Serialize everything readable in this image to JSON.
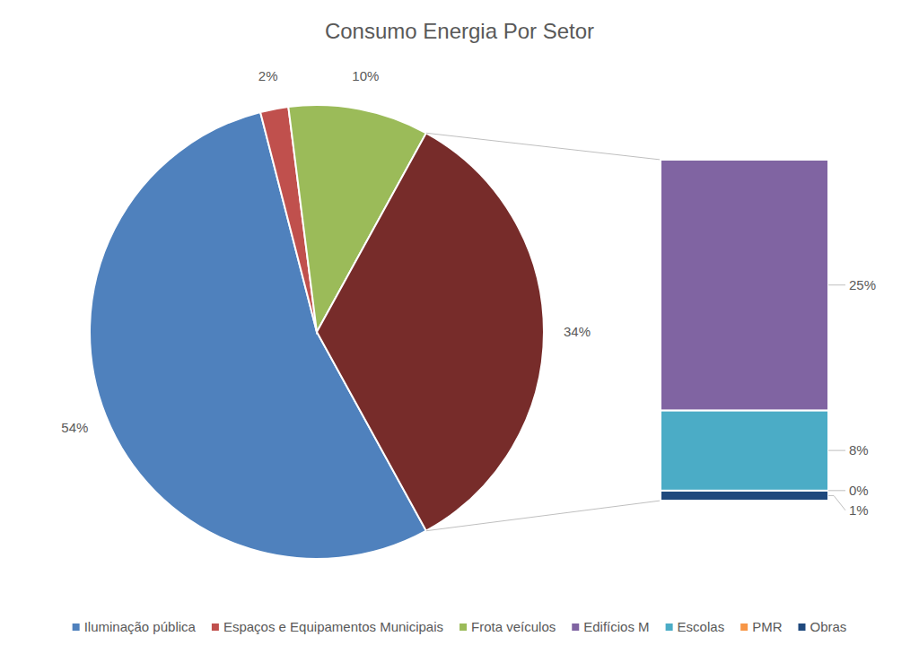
{
  "chart_data": {
    "type": "pie",
    "title": "Consumo Energia Por Setor",
    "categories": [
      "Iluminação pública",
      "Espaços e Equipamentos Municipais",
      "Frota veículos",
      null
    ],
    "values": [
      54,
      2,
      10,
      34
    ],
    "value_labels": [
      "54%",
      "2%",
      "10%",
      "34%"
    ],
    "colors": [
      "#4f81bd",
      "#c0504d",
      "#9bbb59",
      "#772c2a"
    ],
    "data_labels": true,
    "legend": "bottom",
    "breakdown": {
      "categories": [
        "Edifícios M",
        "Escolas",
        "PMR",
        "Obras"
      ],
      "values": [
        25,
        8,
        0,
        1
      ],
      "value_labels": [
        "25%",
        "8%",
        "0%",
        "1%"
      ],
      "colors": [
        "#8064a2",
        "#4bacc6",
        "#f79646",
        "#1f497d"
      ]
    }
  }
}
